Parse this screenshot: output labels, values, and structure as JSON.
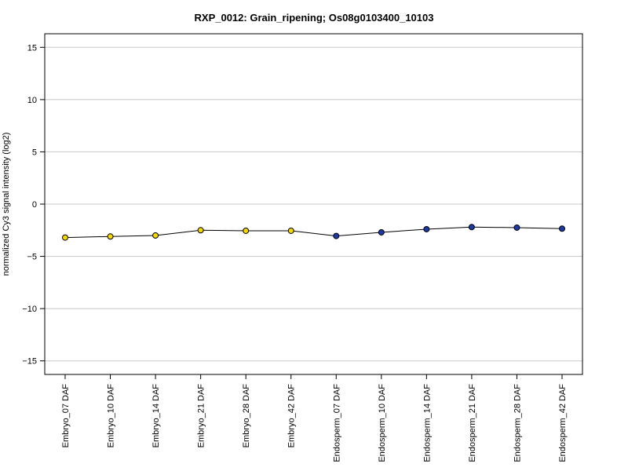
{
  "chart_data": {
    "type": "line",
    "title": "RXP_0012: Grain_ripening; Os08g0103400_10103",
    "xlabel": "",
    "ylabel": "normalized Cy3 signal intensity (log2)",
    "ylim": [
      -16.3,
      16.3
    ],
    "yticks": [
      -15,
      -10,
      -5,
      0,
      5,
      10,
      15
    ],
    "grid": true,
    "categories": [
      "Embryo_07 DAF",
      "Embryo_10 DAF",
      "Embryo_14 DAF",
      "Embryo_21 DAF",
      "Embryo_28 DAF",
      "Embryo_42 DAF",
      "Endosperm_07 DAF",
      "Endosperm_10 DAF",
      "Endosperm_14 DAF",
      "Endosperm_21 DAF",
      "Endosperm_28 DAF",
      "Endosperm_42 DAF"
    ],
    "values": [
      -3.2,
      -3.1,
      -3.0,
      -2.5,
      -2.55,
      -2.55,
      -3.05,
      -2.7,
      -2.4,
      -2.2,
      -2.25,
      -2.35
    ],
    "error": [
      0.12,
      0.15,
      0.3,
      0.12,
      0.1,
      0.1,
      0.25,
      0.12,
      0.1,
      0.2,
      0.1,
      0.1
    ],
    "point_colors": [
      "#f5d800",
      "#f5d800",
      "#f5d800",
      "#f5d800",
      "#f5d800",
      "#f5d800",
      "#1a3aa8",
      "#1a3aa8",
      "#1a3aa8",
      "#1a3aa8",
      "#1a3aa8",
      "#1a3aa8"
    ],
    "line_color": "#000000"
  }
}
